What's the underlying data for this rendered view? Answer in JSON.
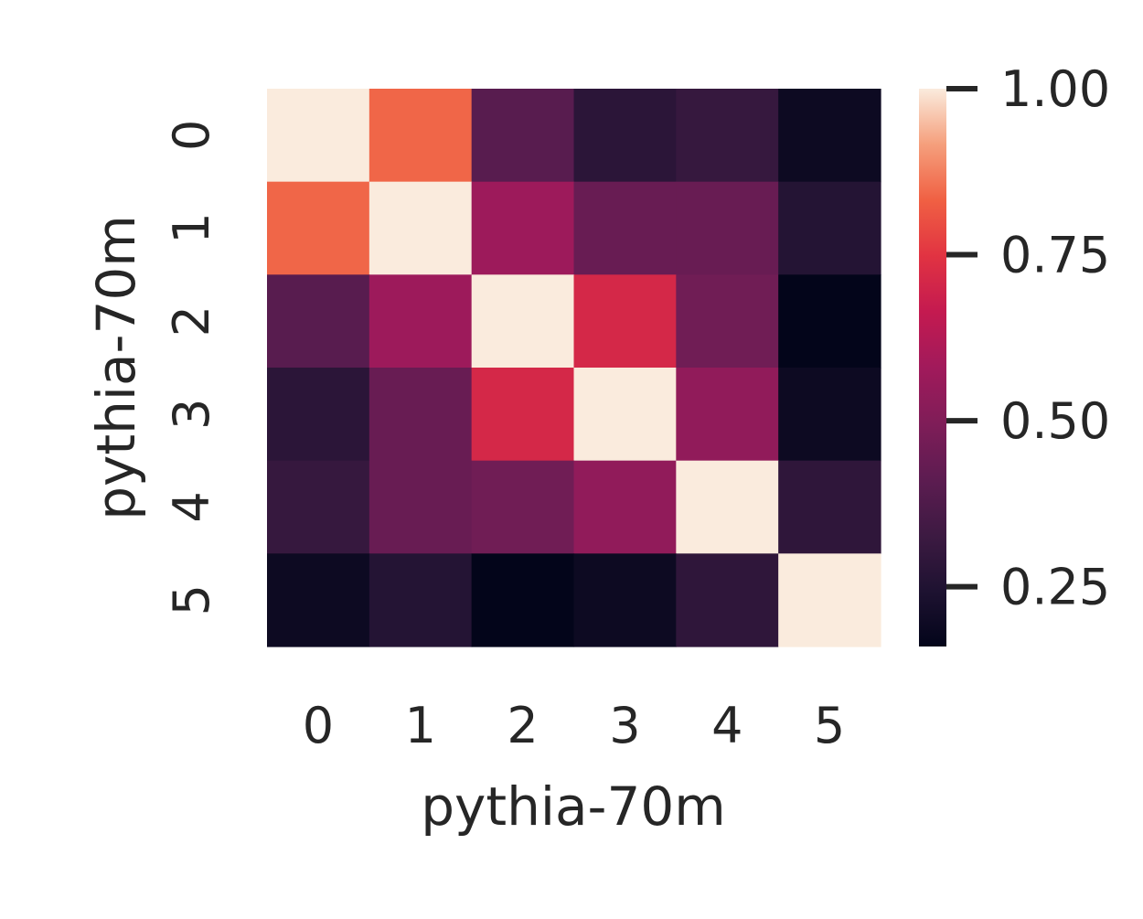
{
  "chart_data": {
    "type": "heatmap",
    "xlabel": "pythia-70m",
    "ylabel": "pythia-70m",
    "x_categories": [
      "0",
      "1",
      "2",
      "3",
      "4",
      "5"
    ],
    "y_categories": [
      "0",
      "1",
      "2",
      "3",
      "4",
      "5"
    ],
    "values": [
      [
        1.0,
        0.84,
        0.4,
        0.28,
        0.31,
        0.19
      ],
      [
        0.84,
        1.0,
        0.57,
        0.44,
        0.44,
        0.26
      ],
      [
        0.4,
        0.57,
        1.0,
        0.71,
        0.46,
        0.16
      ],
      [
        0.28,
        0.44,
        0.71,
        1.0,
        0.54,
        0.19
      ],
      [
        0.31,
        0.44,
        0.46,
        0.54,
        1.0,
        0.29
      ],
      [
        0.19,
        0.26,
        0.16,
        0.19,
        0.29,
        1.0
      ]
    ],
    "colorbar": {
      "colormap": "rocket",
      "vmin": 0.16,
      "vmax": 1.0,
      "ticks": [
        0.25,
        0.5,
        0.75,
        1.0
      ],
      "tick_labels": [
        "0.25",
        "0.50",
        "0.75",
        "1.00"
      ]
    }
  }
}
